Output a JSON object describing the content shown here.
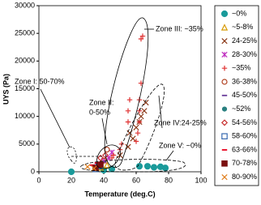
{
  "chart_data": {
    "type": "scatter",
    "x_label": "Temperature (deg.C)",
    "y_label": "UYS (Pa)",
    "xlim": [
      0,
      100
    ],
    "xticks": [
      0,
      20,
      40,
      60,
      80,
      100
    ],
    "ylim": [
      0,
      30000
    ],
    "yticks": [
      0,
      5000,
      10000,
      15000,
      20000,
      25000,
      30000
    ],
    "annotations": [
      "Zone I: 50-70%",
      "Zone II:",
      "0-50%",
      "Zone III: ~35%",
      "Zone IV:24-25%",
      "Zone V: ~0%"
    ],
    "series": [
      {
        "name": "~0%",
        "color": "#1a9a9a",
        "marker": "circle",
        "x": [
          20,
          40,
          45,
          62,
          67,
          71,
          75,
          78
        ],
        "values": [
          0,
          300,
          500,
          1000,
          1000,
          800,
          900,
          700
        ]
      },
      {
        "name": "~5-8%",
        "color": "#d89a00",
        "marker": "triangle",
        "x": [
          38,
          42
        ],
        "values": [
          800,
          1200
        ]
      },
      {
        "name": "24-25%",
        "color": "#8b3a1a",
        "marker": "x",
        "x": [
          50,
          55,
          56,
          58,
          60,
          62,
          63,
          65,
          66
        ],
        "values": [
          3000,
          4500,
          7000,
          6000,
          8000,
          9000,
          10000,
          11000,
          12500
        ]
      },
      {
        "name": "28-30%",
        "color": "#c030c0",
        "marker": "asterisk",
        "x": [
          40,
          43,
          45
        ],
        "values": [
          2000,
          2500,
          3500
        ]
      },
      {
        "name": "~35%",
        "color": "#e03030",
        "marker": "plus",
        "x": [
          45,
          46,
          50,
          51,
          55,
          55,
          56,
          60,
          61,
          62,
          62,
          62,
          63,
          63,
          64
        ],
        "values": [
          2500,
          3000,
          4000,
          5000,
          9000,
          11000,
          13000,
          5500,
          7000,
          9000,
          11000,
          13000,
          16000,
          24000,
          24500
        ]
      },
      {
        "name": "36-38%",
        "color": "#b04020",
        "marker": "ocircle",
        "x": [
          40,
          42
        ],
        "values": [
          2000,
          4000
        ]
      },
      {
        "name": "45-50%",
        "color": "#6a3d9a",
        "marker": "dash",
        "x": [
          36,
          40
        ],
        "values": [
          1500,
          1800
        ]
      },
      {
        "name": "~52%",
        "color": "#2a8080",
        "marker": "dot",
        "x": [
          38
        ],
        "values": [
          1000
        ]
      },
      {
        "name": "54-56%",
        "color": "#c83030",
        "marker": "diamond",
        "x": [
          38,
          41
        ],
        "values": [
          2500,
          3000
        ]
      },
      {
        "name": "58-60%",
        "color": "#3a6ab0",
        "marker": "square",
        "x": [
          35,
          37
        ],
        "values": [
          500,
          1000
        ]
      },
      {
        "name": "63-66%",
        "color": "#e8001c",
        "marker": "dash",
        "x": [
          33,
          36
        ],
        "values": [
          1200,
          1600
        ]
      },
      {
        "name": "70-78%",
        "color": "#7a1010",
        "marker": "fsquare",
        "x": [
          35,
          38
        ],
        "values": [
          700,
          1300
        ]
      },
      {
        "name": "80-90%",
        "color": "#e08020",
        "marker": "x",
        "x": [
          30,
          34
        ],
        "values": [
          900,
          600
        ]
      }
    ]
  }
}
